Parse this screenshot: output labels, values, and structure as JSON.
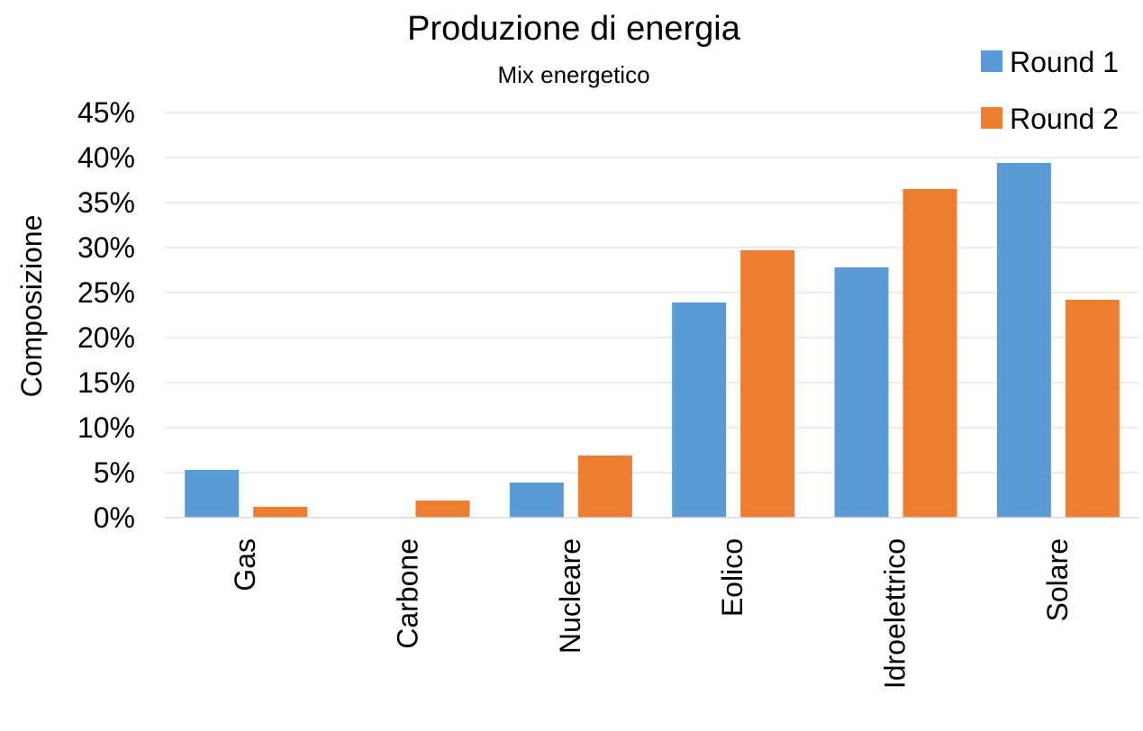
{
  "chart_data": {
    "type": "bar",
    "title": "Produzione di energia",
    "subtitle": "Mix energetico",
    "xlabel": "",
    "ylabel": "Composizione",
    "categories": [
      "Gas",
      "Carbone",
      "Nucleare",
      "Eolico",
      "Idroelettrico",
      "Solare"
    ],
    "series": [
      {
        "name": "Round 1",
        "color": "#5b9bd5",
        "values": [
          5.3,
          0,
          3.9,
          23.9,
          27.8,
          39.4
        ]
      },
      {
        "name": "Round 2",
        "color": "#ed7d31",
        "values": [
          1.2,
          1.9,
          6.9,
          29.7,
          36.5,
          24.2
        ]
      }
    ],
    "yticks": [
      "0%",
      "5%",
      "10%",
      "15%",
      "20%",
      "25%",
      "30%",
      "35%",
      "40%",
      "45%"
    ],
    "ylim": [
      0,
      45
    ],
    "grid": true,
    "legend_position": "top-right"
  }
}
